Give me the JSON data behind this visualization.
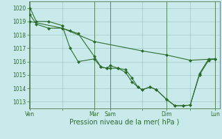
{
  "background_color": "#c8eaea",
  "grid_color": "#a0c8c8",
  "line_color": "#2d6b2d",
  "marker_color": "#2d6b2d",
  "xlabel": "Pression niveau de la mer( hPa )",
  "xlabel_fontsize": 7,
  "yticks": [
    1013,
    1014,
    1015,
    1016,
    1017,
    1018,
    1019,
    1020
  ],
  "ylim": [
    1012.5,
    1020.5
  ],
  "xtick_labels": [
    "Ven",
    "",
    "Mar",
    "Sam",
    "",
    "Dim",
    "",
    "Lun"
  ],
  "xtick_positions": [
    0,
    52,
    104,
    130,
    182,
    221,
    260,
    300
  ],
  "line1_x": [
    0,
    10,
    30,
    52,
    65,
    78,
    104,
    115,
    125,
    130,
    143,
    155,
    165,
    175,
    182,
    195,
    205,
    221,
    235,
    248,
    260,
    275,
    290,
    300
  ],
  "line1_y": [
    1020,
    1019,
    1019,
    1018.7,
    1017,
    1016,
    1016.2,
    1015.6,
    1015.5,
    1015.5,
    1015.5,
    1015.4,
    1014.8,
    1014.1,
    1013.9,
    1014.1,
    1013.9,
    1013.2,
    1012.7,
    1012.7,
    1012.75,
    1015.1,
    1016.2,
    1016.2
  ],
  "line2_x": [
    0,
    10,
    30,
    52,
    65,
    78,
    104,
    115,
    125,
    130,
    143,
    155,
    165,
    175,
    182,
    195,
    205,
    221,
    235,
    248,
    260,
    275,
    290,
    300
  ],
  "line2_y": [
    1019.5,
    1018.8,
    1018.5,
    1018.5,
    1018.3,
    1018.1,
    1016.4,
    1015.6,
    1015.5,
    1015.7,
    1015.5,
    1015.2,
    1014.5,
    1014.1,
    1013.9,
    1014.1,
    1013.9,
    1013.2,
    1012.7,
    1012.7,
    1012.75,
    1015.0,
    1016.1,
    1016.2
  ],
  "line3_x": [
    0,
    52,
    104,
    182,
    221,
    260,
    300
  ],
  "line3_y": [
    1019,
    1018.5,
    1017.5,
    1016.8,
    1016.5,
    1016.1,
    1016.2
  ],
  "figsize": [
    3.2,
    2.0
  ],
  "dpi": 100
}
